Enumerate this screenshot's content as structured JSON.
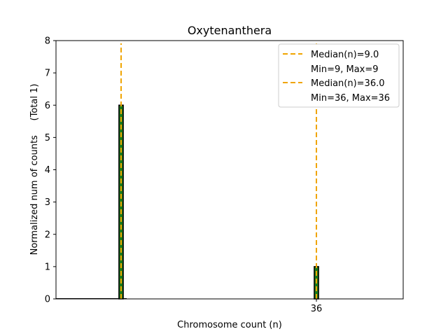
{
  "chart_data": {
    "type": "bar",
    "title": "Oxytenanthera",
    "xlabel": "Chromosome count (n)",
    "ylabel": "Normalized num of counts     (Total 1)",
    "xlim": [
      0,
      48
    ],
    "ylim": [
      0,
      8
    ],
    "yticks": [
      0,
      1,
      2,
      3,
      4,
      5,
      6,
      7,
      8
    ],
    "xticks": [
      36
    ],
    "bar_width": 0.6,
    "grid": false,
    "bars": [
      {
        "x": 9,
        "value": 6
      },
      {
        "x": 36,
        "value": 1
      }
    ],
    "medians": [
      {
        "label": "Median(n)=9.0",
        "range_label": "Min=9, Max=9",
        "x": 9
      },
      {
        "label": "Median(n)=36.0",
        "range_label": "Min=36, Max=36",
        "x": 36
      }
    ],
    "legend_position": "top-right",
    "colors": {
      "bar_fill": "#1a7a1a",
      "bar_edge": "#000000",
      "median": "#f0a500"
    }
  }
}
